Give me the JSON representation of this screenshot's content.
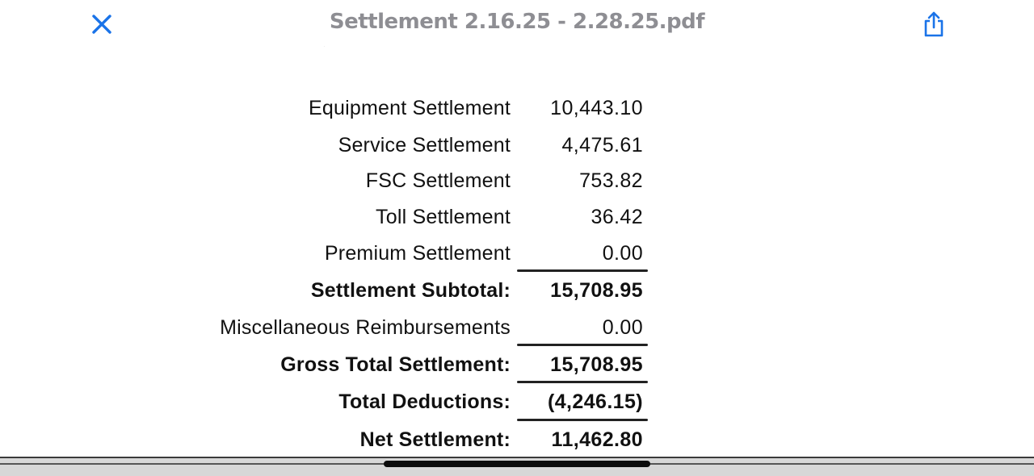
{
  "header": {
    "title": "Settlement 2.16.25 - 2.28.25.pdf",
    "close_icon": "close-x-icon",
    "share_icon": "share-icon",
    "accent_color": "#1a73e8"
  },
  "settlement": {
    "rows": [
      {
        "label": "Equipment Settlement",
        "value": "10,443.10",
        "bold": false
      },
      {
        "label": "Service Settlement",
        "value": "4,475.61",
        "bold": false
      },
      {
        "label": "FSC Settlement",
        "value": "753.82",
        "bold": false
      },
      {
        "label": "Toll Settlement",
        "value": "36.42",
        "bold": false
      },
      {
        "label": "Premium Settlement",
        "value": "0.00",
        "bold": false
      },
      {
        "label": "Settlement Subtotal:",
        "value": "15,708.95",
        "bold": true
      },
      {
        "label": "Miscellaneous Reimbursements",
        "value": "0.00",
        "bold": false
      },
      {
        "label": "Gross Total Settlement:",
        "value": "15,708.95",
        "bold": true
      },
      {
        "label": "Total Deductions:",
        "value": "(4,246.15)",
        "bold": true
      },
      {
        "label": "Net Settlement:",
        "value": "11,462.80",
        "bold": true
      }
    ]
  }
}
